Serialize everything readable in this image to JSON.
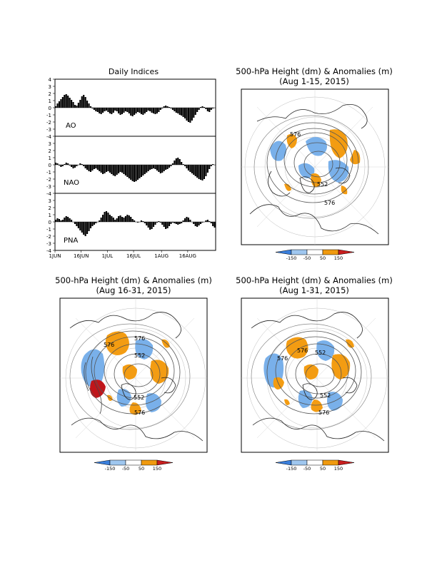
{
  "indices_panel": {
    "title": "Daily Indices",
    "date_labels": [
      "1JUN",
      "16JUN",
      "1JUL",
      "16JUL",
      "1AUG",
      "16AUG"
    ],
    "y_ticks": [
      4,
      3,
      2,
      1,
      0,
      -1,
      -2,
      -3,
      -4
    ]
  },
  "maps": [
    {
      "title": "500-hPa Height (dm) & Anomalies (m)",
      "subtitle": "(Aug 1-15, 2015)",
      "labels": [
        "576",
        "552",
        "576"
      ]
    },
    {
      "title": "500-hPa Height (dm) & Anomalies (m)",
      "subtitle": "(Aug 16-31, 2015)",
      "labels": [
        "576",
        "576",
        "552",
        "552",
        "576"
      ]
    },
    {
      "title": "500-hPa Height (dm) & Anomalies (m)",
      "subtitle": "(Aug 1-31, 2015)",
      "labels": [
        "576",
        "576",
        "552",
        "552",
        "576"
      ]
    }
  ],
  "colorbar": {
    "labels": [
      "-150",
      "-50",
      "50",
      "150"
    ],
    "colors": [
      "#3a7fdc",
      "#9fc7ef",
      "#ffffff",
      "#f09a0f",
      "#c81e1e"
    ]
  },
  "colors": {
    "bar": "#000000",
    "negative_anom": "#74aee8",
    "positive_anom": "#f39c12",
    "strong_neg": "#3a78d6",
    "strong_pos": "#c0151a"
  },
  "chart_data": [
    {
      "type": "bar",
      "name": "AO",
      "x_start": "2015-06-01",
      "ylim": [
        -4,
        4
      ],
      "values": [
        0.2,
        0.6,
        0.9,
        1.2,
        1.5,
        1.8,
        1.9,
        1.7,
        1.4,
        1.1,
        0.8,
        0.4,
        0.3,
        0.7,
        1.1,
        1.6,
        1.8,
        1.5,
        1.0,
        0.6,
        0.2,
        -0.1,
        -0.3,
        -0.5,
        -0.6,
        -0.8,
        -0.9,
        -0.7,
        -0.5,
        -0.4,
        -0.6,
        -0.8,
        -0.9,
        -0.7,
        -0.4,
        -0.5,
        -0.8,
        -1.0,
        -0.9,
        -0.7,
        -0.5,
        -0.6,
        -0.8,
        -1.1,
        -1.2,
        -1.0,
        -0.8,
        -0.6,
        -0.7,
        -0.9,
        -1.0,
        -0.8,
        -0.6,
        -0.4,
        -0.5,
        -0.7,
        -0.8,
        -0.9,
        -0.8,
        -0.6,
        -0.3,
        -0.1,
        0.2,
        0.3,
        0.2,
        0.1,
        -0.1,
        -0.3,
        -0.5,
        -0.7,
        -0.8,
        -1.0,
        -1.1,
        -1.3,
        -1.5,
        -1.8,
        -2.0,
        -2.1,
        -1.8,
        -1.4,
        -1.0,
        -0.6,
        -0.3,
        0.1,
        0.2,
        0.1,
        -0.2,
        -0.5,
        -0.6,
        -0.3,
        -0.1,
        0.0
      ]
    },
    {
      "type": "bar",
      "name": "NAO",
      "x_start": "2015-06-01",
      "ylim": [
        -4,
        4
      ],
      "values": [
        0.3,
        0.2,
        -0.1,
        -0.3,
        -0.2,
        0.1,
        0.3,
        0.2,
        -0.1,
        -0.3,
        -0.5,
        -0.4,
        -0.2,
        0.0,
        0.2,
        0.1,
        -0.2,
        -0.5,
        -0.7,
        -0.9,
        -1.0,
        -0.8,
        -0.6,
        -0.5,
        -0.7,
        -0.9,
        -1.1,
        -1.3,
        -1.2,
        -1.0,
        -0.9,
        -1.1,
        -1.3,
        -1.5,
        -1.6,
        -1.4,
        -1.2,
        -1.0,
        -1.1,
        -1.3,
        -1.5,
        -1.7,
        -1.9,
        -2.1,
        -2.3,
        -2.4,
        -2.3,
        -2.1,
        -1.9,
        -1.7,
        -1.5,
        -1.3,
        -1.1,
        -0.9,
        -0.7,
        -0.6,
        -0.5,
        -0.6,
        -0.8,
        -1.0,
        -1.2,
        -1.1,
        -0.9,
        -0.7,
        -0.6,
        -0.4,
        -0.2,
        0.2,
        0.6,
        0.9,
        1.0,
        0.8,
        0.4,
        0.1,
        -0.2,
        -0.5,
        -0.8,
        -1.0,
        -1.2,
        -1.4,
        -1.6,
        -1.8,
        -2.0,
        -2.1,
        -2.2,
        -2.0,
        -1.6,
        -1.1,
        -0.6,
        -0.2,
        0.1,
        0.0
      ]
    },
    {
      "type": "bar",
      "name": "PNA",
      "x_start": "2015-06-01",
      "ylim": [
        -4,
        4
      ],
      "values": [
        0.3,
        0.5,
        0.4,
        0.2,
        0.3,
        0.6,
        0.8,
        0.7,
        0.5,
        0.3,
        0.0,
        -0.3,
        -0.6,
        -0.9,
        -1.2,
        -1.5,
        -1.8,
        -2.0,
        -1.7,
        -1.3,
        -0.9,
        -0.6,
        -0.4,
        -0.2,
        0.0,
        0.2,
        0.6,
        1.0,
        1.4,
        1.5,
        1.3,
        1.0,
        0.8,
        0.6,
        0.3,
        0.5,
        0.8,
        0.9,
        0.7,
        0.6,
        0.8,
        1.0,
        0.9,
        0.7,
        0.4,
        0.2,
        0.0,
        -0.1,
        0.0,
        0.2,
        0.1,
        -0.2,
        -0.5,
        -0.8,
        -1.1,
        -1.0,
        -0.7,
        -0.4,
        -0.1,
        0.1,
        -0.1,
        -0.4,
        -0.7,
        -1.0,
        -0.9,
        -0.6,
        -0.3,
        -0.1,
        -0.2,
        -0.3,
        -0.4,
        -0.3,
        -0.2,
        0.2,
        0.5,
        0.7,
        0.6,
        0.3,
        0.0,
        -0.3,
        -0.6,
        -0.7,
        -0.5,
        -0.3,
        -0.1,
        0.0,
        0.2,
        0.3,
        0.1,
        -0.2,
        -0.6,
        -0.8
      ]
    }
  ]
}
